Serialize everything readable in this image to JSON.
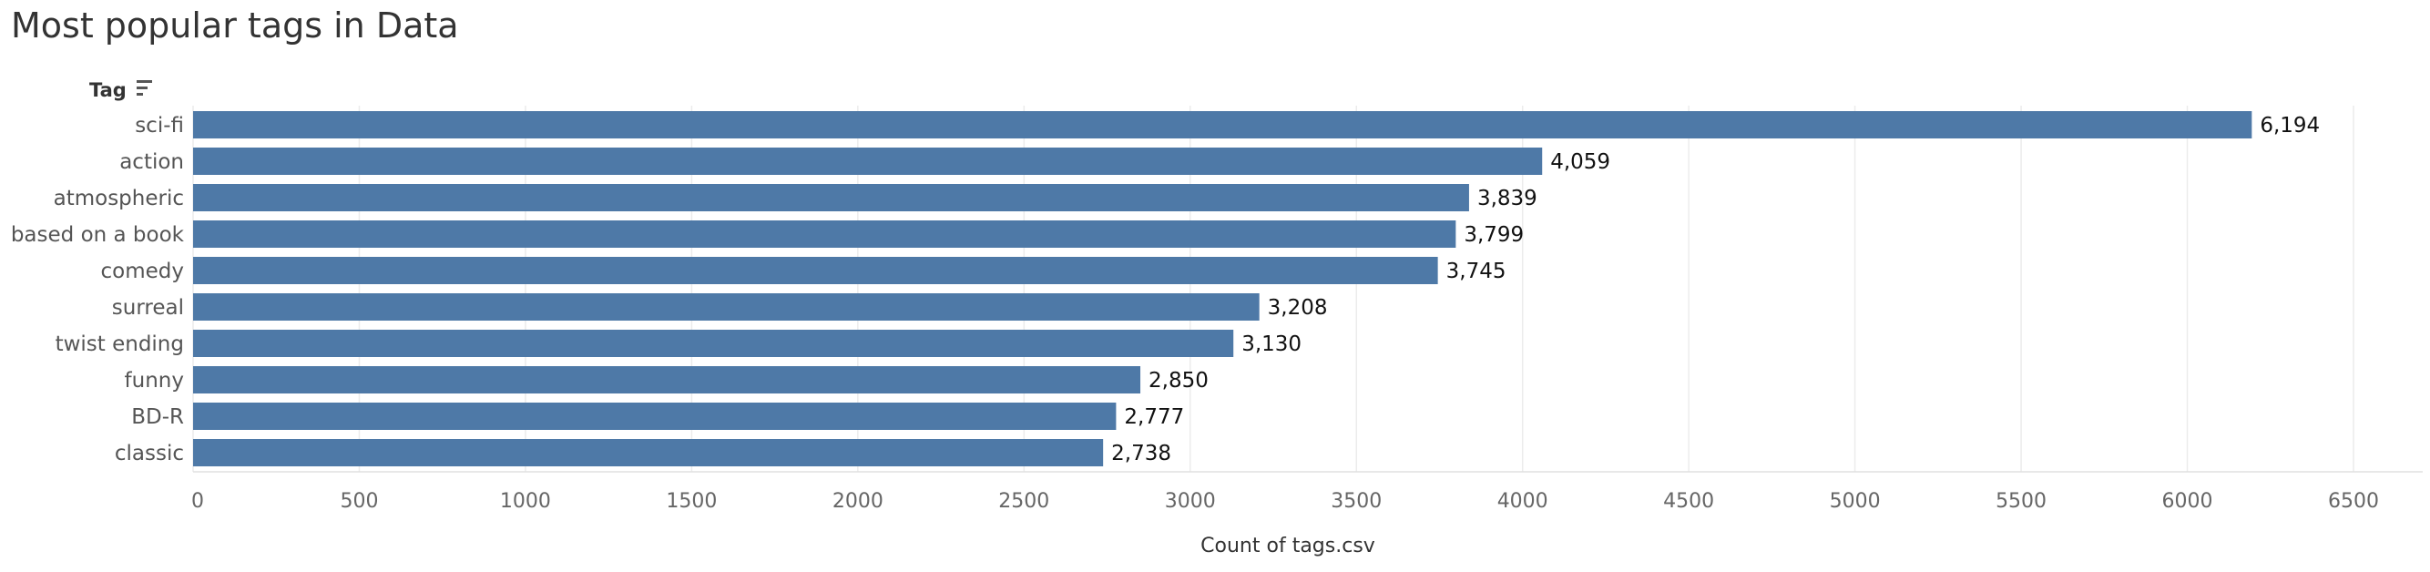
{
  "page": {
    "title": "Most popular tags in Data"
  },
  "chart_data": {
    "type": "bar",
    "orientation": "horizontal",
    "title": "Most popular tags in Data",
    "category_header": "Tag",
    "sort_icon": "sort-descending-icon",
    "xlabel": "Count of tags.csv",
    "ylabel": "",
    "categories": [
      "sci-fi",
      "action",
      "atmospheric",
      "based on a book",
      "comedy",
      "surreal",
      "twist ending",
      "funny",
      "BD-R",
      "classic"
    ],
    "values": [
      6194,
      4059,
      3839,
      3799,
      3745,
      3208,
      3130,
      2850,
      2777,
      2738
    ],
    "value_labels": [
      "6,194",
      "4,059",
      "3,839",
      "3,799",
      "3,745",
      "3,208",
      "3,130",
      "2,850",
      "2,777",
      "2,738"
    ],
    "xlim": [
      0,
      6500
    ],
    "xticks": [
      0,
      500,
      1000,
      1500,
      2000,
      2500,
      3000,
      3500,
      4000,
      4500,
      5000,
      5500,
      6000,
      6500
    ],
    "xtick_labels": [
      "0",
      "500",
      "1000",
      "1500",
      "2000",
      "2500",
      "3000",
      "3500",
      "4000",
      "4500",
      "5000",
      "5500",
      "6000",
      "6500"
    ],
    "grid": true,
    "bar_color": "#4e79a7",
    "grid_color": "#ececec"
  }
}
